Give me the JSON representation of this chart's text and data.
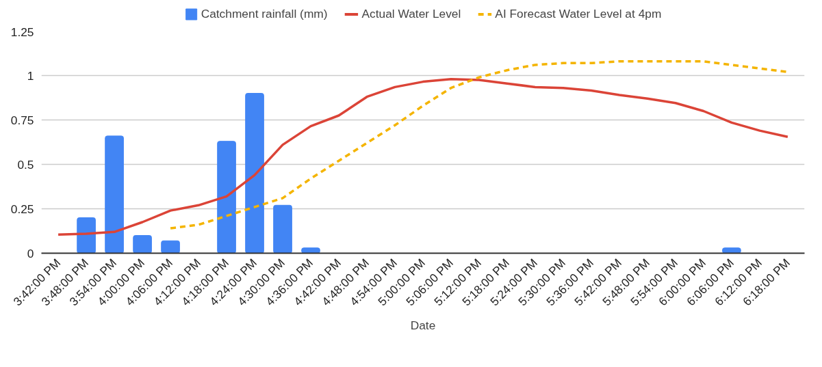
{
  "chart_data": {
    "type": "bar",
    "xlabel": "Date",
    "categories": [
      "3:42:00 PM",
      "3:48:00 PM",
      "3:54:00 PM",
      "4:00:00 PM",
      "4:06:00 PM",
      "4:12:00 PM",
      "4:18:00 PM",
      "4:24:00 PM",
      "4:30:00 PM",
      "4:36:00 PM",
      "4:42:00 PM",
      "4:48:00 PM",
      "4:54:00 PM",
      "5:00:00 PM",
      "5:06:00 PM",
      "5:12:00 PM",
      "5:18:00 PM",
      "5:24:00 PM",
      "5:30:00 PM",
      "5:36:00 PM",
      "5:42:00 PM",
      "5:48:00 PM",
      "5:54:00 PM",
      "6:00:00 PM",
      "6:06:00 PM",
      "6:12:00 PM",
      "6:18:00 PM"
    ],
    "series": [
      {
        "name": "Catchment rainfall (mm)",
        "color": "#4285f4",
        "values": [
          0,
          0.2,
          0.66,
          0.1,
          0.07,
          0,
          0.63,
          0.9,
          0.27,
          0.03,
          0,
          0,
          0,
          0,
          0,
          0,
          0,
          0,
          0,
          0,
          0,
          0,
          0,
          0,
          0.03,
          0,
          0
        ]
      },
      {
        "name": "Actual Water Level",
        "type": "line",
        "color": "#db4437",
        "line_style": "solid",
        "values": [
          0.105,
          0.11,
          0.12,
          0.175,
          0.24,
          0.27,
          0.32,
          0.44,
          0.61,
          0.715,
          0.775,
          0.88,
          0.935,
          0.965,
          0.98,
          0.975,
          0.955,
          0.935,
          0.93,
          0.915,
          0.89,
          0.87,
          0.845,
          0.8,
          0.735,
          0.69,
          0.655
        ]
      },
      {
        "name": "AI Forecast Water Level at 4pm",
        "type": "line",
        "color": "#f4b400",
        "line_style": "dashed",
        "values": [
          null,
          null,
          null,
          null,
          0.14,
          0.16,
          0.21,
          0.26,
          0.31,
          0.42,
          0.52,
          0.62,
          0.72,
          0.83,
          0.93,
          0.99,
          1.03,
          1.06,
          1.07,
          1.07,
          1.08,
          1.08,
          1.08,
          1.08,
          1.06,
          1.04,
          1.02
        ]
      }
    ],
    "ylim": [
      0,
      1.25
    ],
    "yticks": [
      0,
      0.25,
      0.5,
      0.75,
      1,
      1.25
    ],
    "grid": "y",
    "legend": "top",
    "marker": "none"
  }
}
